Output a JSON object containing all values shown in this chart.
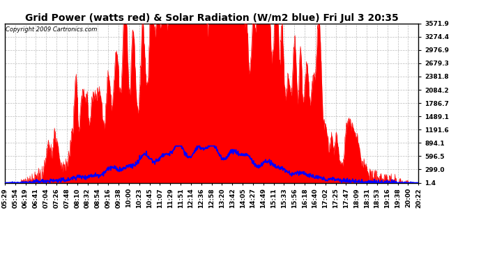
{
  "title": "Grid Power (watts red) & Solar Radiation (W/m2 blue) Fri Jul 3 20:35",
  "copyright": "Copyright 2009 Cartronics.com",
  "yticks": [
    1.4,
    299.0,
    596.5,
    894.1,
    1191.6,
    1489.1,
    1786.7,
    2084.2,
    2381.8,
    2679.3,
    2976.9,
    3274.4,
    3571.9
  ],
  "ytick_labels": [
    "1.4",
    "299.0",
    "596.5",
    "894.1",
    "1191.6",
    "1489.1",
    "1786.7",
    "2084.2",
    "2381.8",
    "2679.3",
    "2976.9",
    "3274.4",
    "3571.9"
  ],
  "xtick_labels": [
    "05:29",
    "05:54",
    "06:19",
    "06:41",
    "07:04",
    "07:26",
    "07:48",
    "08:10",
    "08:32",
    "08:54",
    "09:16",
    "09:38",
    "10:00",
    "10:23",
    "10:45",
    "11:07",
    "11:29",
    "11:51",
    "12:14",
    "12:36",
    "12:58",
    "13:20",
    "13:42",
    "14:05",
    "14:27",
    "14:49",
    "15:11",
    "15:33",
    "15:56",
    "16:18",
    "16:40",
    "17:02",
    "17:25",
    "17:47",
    "18:09",
    "18:31",
    "18:53",
    "19:16",
    "19:38",
    "20:00",
    "20:22"
  ],
  "ymin": 1.4,
  "ymax": 3571.9,
  "bg_color": "#ffffff",
  "plot_bg_color": "#ffffff",
  "grid_color": "#aaaaaa",
  "red_color": "#ff0000",
  "blue_color": "#0000ff",
  "title_color": "#000000",
  "tick_color": "#000000",
  "border_color": "#000000",
  "font_size_title": 10,
  "font_size_ticks": 6.5,
  "font_size_copyright": 6
}
